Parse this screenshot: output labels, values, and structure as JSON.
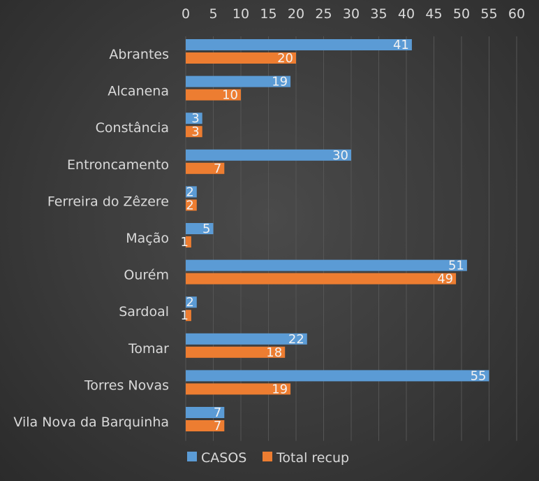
{
  "chart_data": {
    "type": "bar",
    "orientation": "horizontal",
    "categories": [
      "Abrantes",
      "Alcanena",
      "Constância",
      "Entroncamento",
      "Ferreira do Zêzere",
      "Mação",
      "Ourém",
      "Sardoal",
      "Tomar",
      "Torres Novas",
      "Vila Nova da Barquinha"
    ],
    "series": [
      {
        "name": "CASOS",
        "color": "#5b9bd5",
        "values": [
          41,
          19,
          3,
          30,
          2,
          5,
          51,
          2,
          22,
          55,
          7
        ]
      },
      {
        "name": "Total recup",
        "color": "#ed7d31",
        "values": [
          20,
          10,
          3,
          7,
          2,
          1,
          49,
          1,
          18,
          19,
          7
        ]
      }
    ],
    "xlim": [
      0,
      60
    ],
    "xticks": [
      0,
      5,
      10,
      15,
      20,
      25,
      30,
      35,
      40,
      45,
      50,
      55,
      60
    ],
    "x_axis_position": "top",
    "grid": true,
    "legend": "bottom",
    "data_labels": true
  }
}
